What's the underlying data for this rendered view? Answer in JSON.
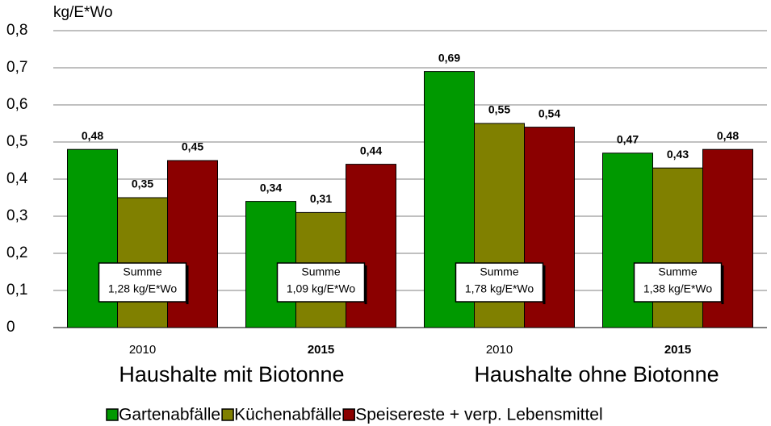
{
  "chart_data": {
    "type": "bar",
    "y_label": "kg/E*Wo",
    "categories": [
      "2010",
      "2015",
      "2010",
      "2015"
    ],
    "category_bold": [
      false,
      true,
      false,
      true
    ],
    "series": [
      {
        "name": "Gartenabfälle",
        "color": "#009900",
        "values": [
          0.48,
          0.34,
          0.69,
          0.47
        ],
        "value_labels": [
          "0,48",
          "0,34",
          "0,69",
          "0,47"
        ]
      },
      {
        "name": "Küchenabfälle",
        "color": "#808000",
        "values": [
          0.35,
          0.31,
          0.55,
          0.43
        ],
        "value_labels": [
          "0,35",
          "0,31",
          "0,55",
          "0,43"
        ]
      },
      {
        "name": "Speisereste + verp. Lebensmittel",
        "color": "#8b0000",
        "values": [
          0.45,
          0.44,
          0.54,
          0.48
        ],
        "value_labels": [
          "0,45",
          "0,44",
          "0,54",
          "0,48"
        ]
      }
    ],
    "annotations": [
      [
        "Summe",
        "1,28 kg/E*Wo"
      ],
      [
        "Summe",
        "1,09 kg/E*Wo"
      ],
      [
        "Summe",
        "1,78 kg/E*Wo"
      ],
      [
        "Summe",
        "1,38 kg/E*Wo"
      ]
    ],
    "groups": [
      {
        "label": "Haushalte mit Biotonne",
        "color": "#1e7b1e"
      },
      {
        "label": "Haushalte ohne Biotonne",
        "color": "#8b1a1a"
      }
    ],
    "ylim": [
      0,
      0.8
    ],
    "yticks": [
      0,
      {
        "value": 0.1,
        "label": "0,1"
      },
      {
        "value": 0.2,
        "label": "0,2"
      },
      {
        "value": 0.3,
        "label": "0,3"
      },
      {
        "value": 0.4,
        "label": "0,4"
      },
      {
        "value": 0.5,
        "label": "0,5"
      },
      {
        "value": 0.6,
        "label": "0,6"
      },
      {
        "value": 0.7,
        "label": "0,7"
      },
      {
        "value": 0.8,
        "label": "0,8"
      }
    ],
    "grid": true
  }
}
